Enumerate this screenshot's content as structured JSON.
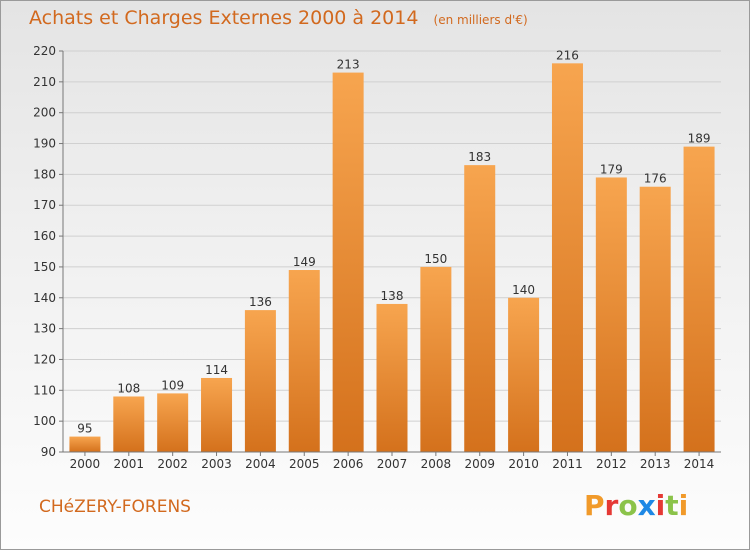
{
  "title": "Achats et Charges Externes 2000 à 2014",
  "unit_note": "(en milliers d'€)",
  "commune": "CHéZERY-FORENS",
  "logo_text": "Proxiti",
  "colors": {
    "bar_top": "#f7a54f",
    "bar_bottom": "#d4711c",
    "title": "#d2691e",
    "grid": "#d0d0d0",
    "logo": [
      "#f19a2a",
      "#e53935",
      "#8bc34a",
      "#1e88e5",
      "#e53935",
      "#8bc34a",
      "#f19a2a"
    ]
  },
  "chart_data": {
    "type": "bar",
    "title": "Achats et Charges Externes 2000 à 2014",
    "subtitle": "(en milliers d'€)",
    "categories": [
      "2000",
      "2001",
      "2002",
      "2003",
      "2004",
      "2005",
      "2006",
      "2007",
      "2008",
      "2009",
      "2010",
      "2011",
      "2012",
      "2013",
      "2014"
    ],
    "values": [
      95,
      108,
      109,
      114,
      136,
      149,
      213,
      138,
      150,
      183,
      140,
      216,
      179,
      176,
      189
    ],
    "ylim": [
      90,
      220
    ],
    "yticks": [
      90,
      100,
      110,
      120,
      130,
      140,
      150,
      160,
      170,
      180,
      190,
      200,
      210,
      220
    ],
    "grid": true,
    "xlabel": "",
    "ylabel": ""
  }
}
